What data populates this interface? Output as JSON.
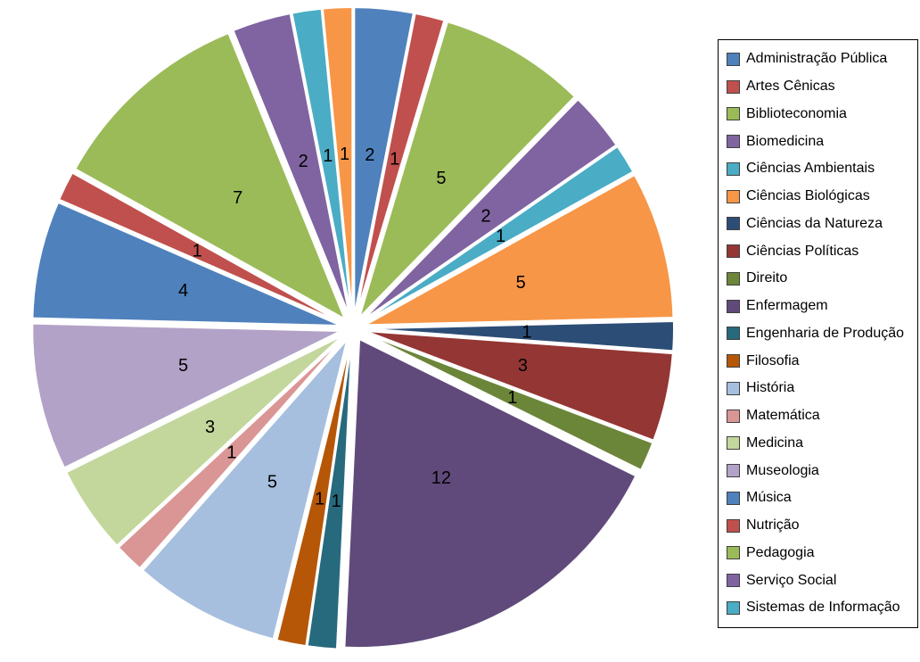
{
  "page": {
    "background": "#FFFFFF"
  },
  "chart_data": {
    "type": "pie",
    "title": "",
    "legend_position": "right",
    "exploded": true,
    "data_labels": "value",
    "total": 65,
    "slices": [
      {
        "label": "Administração Pública",
        "value": 2,
        "color": "#4F81BD"
      },
      {
        "label": "Artes Cênicas",
        "value": 1,
        "color": "#C0504D"
      },
      {
        "label": "Biblioteconomia",
        "value": 5,
        "color": "#9BBB59"
      },
      {
        "label": "Biomedicina",
        "value": 2,
        "color": "#8064A2"
      },
      {
        "label": "Ciências Ambientais",
        "value": 1,
        "color": "#4BACC6"
      },
      {
        "label": "Ciências Biológicas",
        "value": 5,
        "color": "#F79646"
      },
      {
        "label": "Ciências da Natureza",
        "value": 1,
        "color": "#2C4D75"
      },
      {
        "label": "Ciências Políticas",
        "value": 3,
        "color": "#943634"
      },
      {
        "label": "Direito",
        "value": 1,
        "color": "#6B8639"
      },
      {
        "label": "Enfermagem",
        "value": 12,
        "color": "#604A7B"
      },
      {
        "label": "Engenharia de Produção",
        "value": 1,
        "color": "#276A7D"
      },
      {
        "label": "Filosofia",
        "value": 1,
        "color": "#B65708"
      },
      {
        "label": "História",
        "value": 5,
        "color": "#A7BFDE"
      },
      {
        "label": "Matemática",
        "value": 1,
        "color": "#D99694"
      },
      {
        "label": "Medicina",
        "value": 3,
        "color": "#C3D69B"
      },
      {
        "label": "Museologia",
        "value": 5,
        "color": "#B3A2C7"
      },
      {
        "label": "Música",
        "value": 4,
        "color": "#4F81BD"
      },
      {
        "label": "Nutrição",
        "value": 1,
        "color": "#C0504D"
      },
      {
        "label": "Pedagogia",
        "value": 7,
        "color": "#9BBB59"
      },
      {
        "label": "Serviço Social",
        "value": 2,
        "color": "#8064A2"
      },
      {
        "label": "Sistemas de Informação",
        "value": 1,
        "color": "#4BACC6"
      },
      {
        "label": "",
        "value": 1,
        "color": "#F79646",
        "in_legend": false
      }
    ]
  }
}
